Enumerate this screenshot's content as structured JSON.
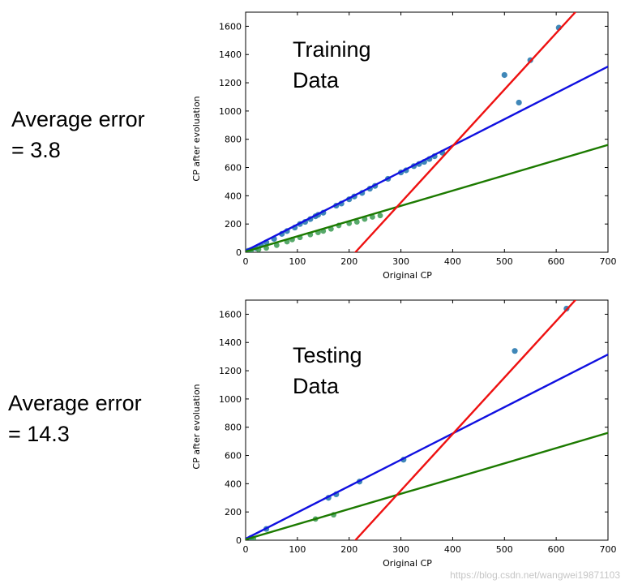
{
  "labels": {
    "top_error_line1": "Average error",
    "top_error_line2": "= 3.8",
    "bottom_error_line1": "Average error",
    "bottom_error_line2": "= 14.3"
  },
  "watermark": "https://blog.csdn.net/wangwei19871103",
  "colors": {
    "blue_line": "#1010e0",
    "green_line": "#1c7a00",
    "red_line": "#ee1111",
    "point": "#2a7ab0",
    "point_green": "#3a9a50"
  },
  "chart_data": [
    {
      "type": "scatter",
      "id": "training",
      "annotation": [
        "Training",
        "Data"
      ],
      "xlabel": "Original CP",
      "ylabel": "CP after evoluation",
      "xlim": [
        0,
        700
      ],
      "ylim": [
        0,
        1700
      ],
      "xticks": [
        0,
        100,
        200,
        300,
        400,
        500,
        600,
        700
      ],
      "yticks": [
        0,
        200,
        400,
        600,
        800,
        1000,
        1200,
        1400,
        1600
      ],
      "lines": [
        {
          "name": "blue",
          "color": "#1010e0",
          "points": [
            [
              0,
              10
            ],
            [
              700,
              1315
            ]
          ]
        },
        {
          "name": "green",
          "color": "#1c7a00",
          "points": [
            [
              0,
              5
            ],
            [
              700,
              760
            ]
          ]
        },
        {
          "name": "red",
          "color": "#ee1111",
          "points": [
            [
              212,
              0
            ],
            [
              637,
              1700
            ]
          ]
        }
      ],
      "points_blue": [
        [
          5,
          10
        ],
        [
          10,
          15
        ],
        [
          20,
          30
        ],
        [
          30,
          50
        ],
        [
          40,
          70
        ],
        [
          55,
          95
        ],
        [
          70,
          130
        ],
        [
          80,
          150
        ],
        [
          95,
          175
        ],
        [
          105,
          200
        ],
        [
          115,
          215
        ],
        [
          125,
          235
        ],
        [
          135,
          255
        ],
        [
          140,
          265
        ],
        [
          150,
          280
        ],
        [
          175,
          330
        ],
        [
          185,
          345
        ],
        [
          200,
          375
        ],
        [
          210,
          395
        ],
        [
          225,
          420
        ],
        [
          240,
          450
        ],
        [
          250,
          470
        ],
        [
          275,
          520
        ],
        [
          300,
          565
        ],
        [
          310,
          580
        ],
        [
          325,
          610
        ],
        [
          335,
          625
        ],
        [
          345,
          640
        ],
        [
          355,
          660
        ],
        [
          365,
          680
        ],
        [
          380,
          705
        ],
        [
          500,
          1255
        ],
        [
          528,
          1060
        ],
        [
          550,
          1360
        ],
        [
          605,
          1590
        ]
      ],
      "points_green": [
        [
          10,
          10
        ],
        [
          25,
          20
        ],
        [
          40,
          30
        ],
        [
          60,
          50
        ],
        [
          80,
          75
        ],
        [
          90,
          90
        ],
        [
          105,
          105
        ],
        [
          125,
          125
        ],
        [
          140,
          140
        ],
        [
          150,
          150
        ],
        [
          165,
          165
        ],
        [
          180,
          190
        ],
        [
          200,
          205
        ],
        [
          215,
          215
        ],
        [
          230,
          235
        ],
        [
          245,
          250
        ],
        [
          260,
          260
        ]
      ]
    },
    {
      "type": "scatter",
      "id": "testing",
      "annotation": [
        "Testing",
        "Data"
      ],
      "xlabel": "Original CP",
      "ylabel": "CP after evoluation",
      "xlim": [
        0,
        700
      ],
      "ylim": [
        0,
        1700
      ],
      "xticks": [
        0,
        100,
        200,
        300,
        400,
        500,
        600,
        700
      ],
      "yticks": [
        0,
        200,
        400,
        600,
        800,
        1000,
        1200,
        1400,
        1600
      ],
      "lines": [
        {
          "name": "blue",
          "color": "#1010e0",
          "points": [
            [
              0,
              10
            ],
            [
              700,
              1315
            ]
          ]
        },
        {
          "name": "green",
          "color": "#1c7a00",
          "points": [
            [
              0,
              5
            ],
            [
              700,
              760
            ]
          ]
        },
        {
          "name": "red",
          "color": "#ee1111",
          "points": [
            [
              212,
              0
            ],
            [
              637,
              1700
            ]
          ]
        }
      ],
      "points_blue": [
        [
          10,
          15
        ],
        [
          40,
          80
        ],
        [
          160,
          300
        ],
        [
          175,
          325
        ],
        [
          220,
          415
        ],
        [
          305,
          570
        ],
        [
          520,
          1340
        ],
        [
          620,
          1640
        ]
      ],
      "points_green": [
        [
          15,
          10
        ],
        [
          135,
          150
        ],
        [
          170,
          180
        ]
      ]
    }
  ]
}
